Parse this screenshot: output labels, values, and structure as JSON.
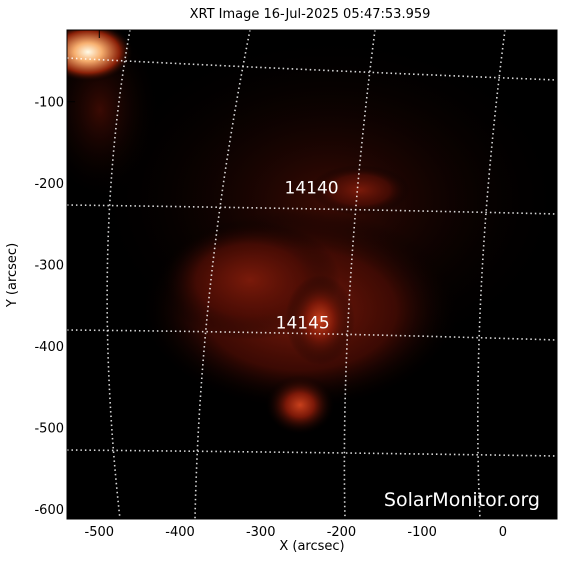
{
  "chart_data": {
    "type": "image",
    "title": "XRT Image 16-Jul-2025 05:47:53.959",
    "xlabel": "X (arcsec)",
    "ylabel": "Y (arcsec)",
    "xlim": [
      -540,
      67
    ],
    "ylim": [
      -612,
      -12
    ],
    "xticks": [
      -500,
      -400,
      -300,
      -200,
      -100,
      0
    ],
    "yticks": [
      -100,
      -200,
      -300,
      -400,
      -500,
      -600
    ],
    "annotations": [
      {
        "text": "14140",
        "x": -237,
        "y": -205
      },
      {
        "text": "14145",
        "x": -248,
        "y": -371
      }
    ],
    "watermark": "SolarMonitor.org"
  }
}
